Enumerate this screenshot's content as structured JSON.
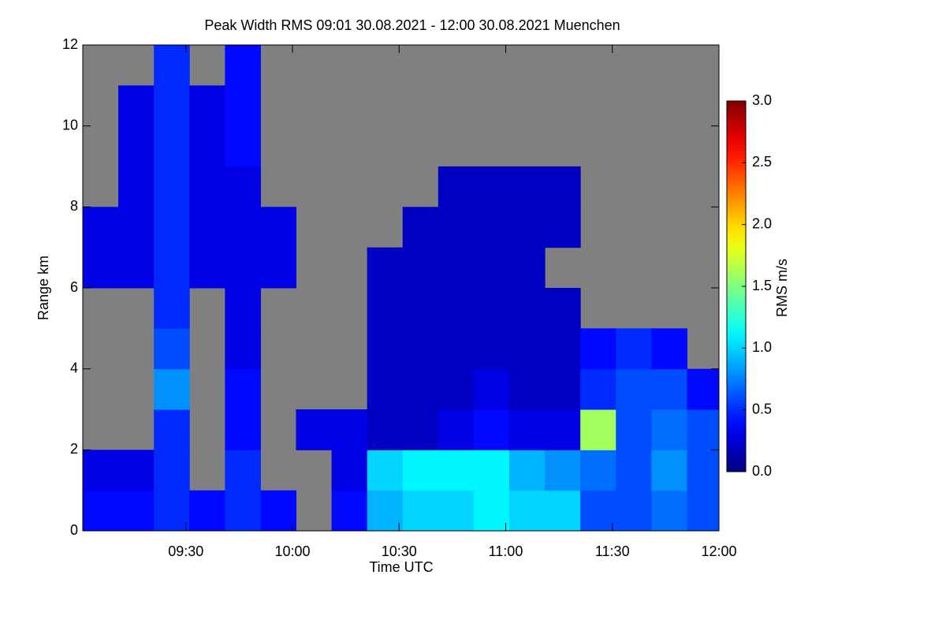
{
  "chart_data": {
    "type": "heatmap",
    "title": "Peak Width RMS   09:01 30.08.2021 - 12:00 30.08.2021 Muenchen",
    "x_label": "Time UTC",
    "y_label": "Range km",
    "colorbar_label": "RMS m/s",
    "colormap": "jet",
    "missing_color": "#808080",
    "xlim": [
      541,
      720
    ],
    "xticks": [
      {
        "value": 570,
        "label": "09:30"
      },
      {
        "value": 600,
        "label": "10:00"
      },
      {
        "value": 630,
        "label": "10:30"
      },
      {
        "value": 660,
        "label": "11:00"
      },
      {
        "value": 690,
        "label": "11:30"
      },
      {
        "value": 720,
        "label": "12:00"
      }
    ],
    "ylim": [
      0,
      12
    ],
    "yticks": [
      0,
      2,
      4,
      6,
      8,
      10,
      12
    ],
    "zlim": [
      0,
      3
    ],
    "zticks": [
      {
        "value": 0,
        "label": "0.0"
      },
      {
        "value": 0.5,
        "label": "0.5"
      },
      {
        "value": 1,
        "label": "1.0"
      },
      {
        "value": 1.5,
        "label": "1.5"
      },
      {
        "value": 2,
        "label": "2.0"
      },
      {
        "value": 2.5,
        "label": "2.5"
      },
      {
        "value": 3,
        "label": "3.0"
      }
    ],
    "x": [
      546,
      556,
      566,
      576,
      586,
      596,
      606,
      616,
      626,
      636,
      646,
      656,
      666,
      676,
      686,
      696,
      706,
      716
    ],
    "y": [
      0.5,
      1.5,
      2.5,
      3.5,
      4.5,
      5.5,
      6.5,
      7.5,
      8.5,
      9.5,
      10.5,
      11.5
    ],
    "z": [
      [
        0.4,
        0.4,
        0.5,
        0.4,
        0.5,
        0.4,
        null,
        0.4,
        0.9,
        1.0,
        1.0,
        1.1,
        1.0,
        1.0,
        0.6,
        0.6,
        0.7,
        0.6
      ],
      [
        0.3,
        0.3,
        0.5,
        null,
        0.5,
        null,
        null,
        0.3,
        1.0,
        1.1,
        1.1,
        1.1,
        0.9,
        0.8,
        0.7,
        0.6,
        0.8,
        0.6
      ],
      [
        null,
        null,
        0.5,
        null,
        0.4,
        null,
        0.3,
        0.3,
        0.2,
        0.2,
        0.3,
        0.4,
        0.3,
        0.3,
        1.6,
        0.6,
        0.7,
        0.6
      ],
      [
        null,
        null,
        0.8,
        null,
        0.4,
        null,
        null,
        null,
        0.2,
        0.2,
        0.2,
        0.3,
        0.2,
        0.2,
        0.5,
        0.6,
        0.6,
        0.4
      ],
      [
        null,
        null,
        0.6,
        null,
        0.3,
        null,
        null,
        null,
        0.2,
        0.2,
        0.2,
        0.2,
        0.2,
        0.2,
        0.4,
        0.5,
        0.4,
        null
      ],
      [
        null,
        null,
        0.5,
        null,
        0.3,
        null,
        null,
        null,
        0.2,
        0.2,
        0.2,
        0.2,
        0.2,
        0.2,
        null,
        null,
        null,
        null
      ],
      [
        0.3,
        0.3,
        0.5,
        0.3,
        0.3,
        0.3,
        null,
        null,
        0.2,
        0.2,
        0.2,
        0.2,
        0.2,
        null,
        null,
        null,
        null,
        null
      ],
      [
        0.3,
        0.3,
        0.5,
        0.3,
        0.3,
        0.3,
        null,
        null,
        null,
        0.2,
        0.2,
        0.2,
        0.2,
        0.2,
        null,
        null,
        null,
        null
      ],
      [
        null,
        0.3,
        0.5,
        0.3,
        0.3,
        null,
        null,
        null,
        null,
        null,
        0.2,
        0.2,
        0.2,
        0.2,
        null,
        null,
        null,
        null
      ],
      [
        null,
        0.3,
        0.5,
        0.3,
        0.4,
        null,
        null,
        null,
        null,
        null,
        null,
        null,
        null,
        null,
        null,
        null,
        null,
        null
      ],
      [
        null,
        0.3,
        0.5,
        0.3,
        0.4,
        null,
        null,
        null,
        null,
        null,
        null,
        null,
        null,
        null,
        null,
        null,
        null,
        null
      ],
      [
        null,
        null,
        0.5,
        null,
        0.4,
        null,
        null,
        null,
        null,
        null,
        null,
        null,
        null,
        null,
        null,
        null,
        null,
        null
      ]
    ]
  }
}
